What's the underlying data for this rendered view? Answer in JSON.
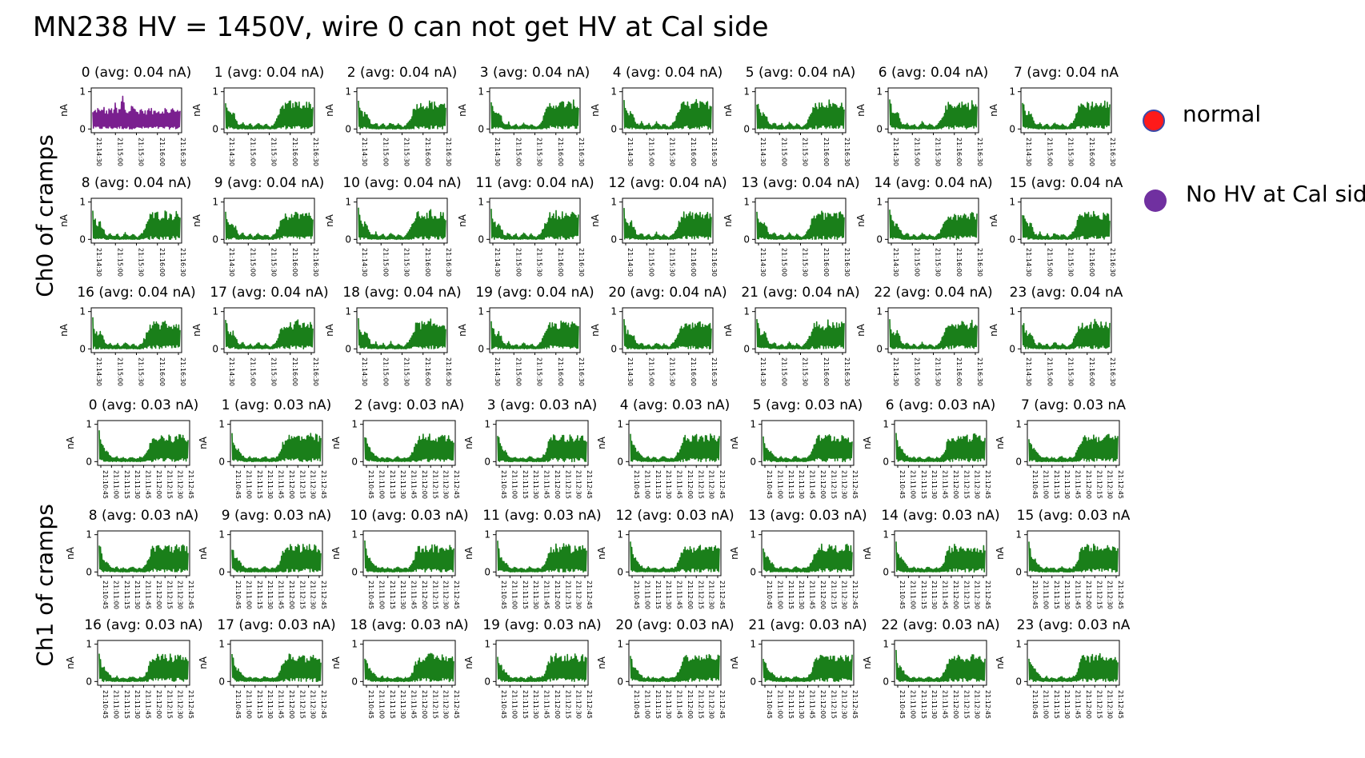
{
  "slide": {
    "title": "MN238 HV = 1450V, wire 0 can not get HV at Cal side"
  },
  "groups": [
    {
      "label": "Ch0 of cramps"
    },
    {
      "label": "Ch1 of cramps"
    }
  ],
  "legend": [
    {
      "label": "normal",
      "color": "#ff1a1a",
      "border": "#3a4aa8"
    },
    {
      "label": "No HV at Cal side",
      "color": "#7030a0",
      "border": "#7030a0"
    }
  ],
  "colors": {
    "normal_series": "#1a7f1a",
    "no_hv_series": "#7a1f8f"
  },
  "chart_data": [
    {
      "type": "line",
      "group": "Ch0 of cramps",
      "panel_titles": [
        "0 (avg: 0.04 nA)",
        "1 (avg: 0.04 nA)",
        "2 (avg: 0.04 nA)",
        "3 (avg: 0.04 nA)",
        "4 (avg: 0.04 nA)",
        "5 (avg: 0.04 nA)",
        "6 (avg: 0.04 nA)",
        "7 (avg: 0.04 nA",
        "8 (avg: 0.04 nA)",
        "9 (avg: 0.04 nA)",
        "10 (avg: 0.04 nA)",
        "11 (avg: 0.04 nA)",
        "12 (avg: 0.04 nA)",
        "13 (avg: 0.04 nA)",
        "14 (avg: 0.04 nA)",
        "15 (avg: 0.04 nA",
        "16 (avg: 0.04 nA)",
        "17 (avg: 0.04 nA)",
        "18 (avg: 0.04 nA)",
        "19 (avg: 0.04 nA)",
        "20 (avg: 0.04 nA)",
        "21 (avg: 0.04 nA)",
        "22 (avg: 0.04 nA)",
        "23 (avg: 0.04 nA"
      ],
      "wire_status": [
        "no_hv",
        "normal",
        "normal",
        "normal",
        "normal",
        "normal",
        "normal",
        "normal",
        "normal",
        "normal",
        "normal",
        "normal",
        "normal",
        "normal",
        "normal",
        "normal",
        "normal",
        "normal",
        "normal",
        "normal",
        "normal",
        "normal",
        "normal",
        "normal"
      ],
      "ylabel": "nA",
      "yticks": [
        "0",
        "1"
      ],
      "ylim": [
        -0.1,
        1.1
      ],
      "xticks": [
        "21:14:30",
        "21:15:00",
        "21:15:30",
        "21:16:00",
        "21:16:30"
      ],
      "profile_normal": [
        0.85,
        0.55,
        0.45,
        0.5,
        0.35,
        0.15,
        0.12,
        0.2,
        0.08,
        0.1,
        0.15,
        0.05,
        0.1,
        0.2,
        0.12,
        0.08,
        0.15,
        0.1,
        0.05,
        0.12,
        0.2,
        0.35,
        0.55,
        0.7,
        0.75,
        0.72,
        0.78,
        0.7,
        0.75,
        0.8,
        0.72,
        0.76,
        0.7,
        0.78,
        0.74,
        0.7
      ],
      "profile_no_hv": [
        0.5,
        0.55,
        0.6,
        0.5,
        0.65,
        0.55,
        0.5,
        0.6,
        0.55,
        0.7,
        0.5,
        0.6,
        1.0,
        0.55,
        0.5,
        0.6,
        0.75,
        0.55,
        0.5,
        0.6,
        0.55,
        0.5,
        0.55,
        0.6,
        0.5,
        0.55,
        0.6,
        0.5,
        0.55,
        0.6,
        0.5,
        0.55,
        0.6,
        0.5,
        0.55,
        0.6
      ]
    },
    {
      "type": "line",
      "group": "Ch1 of cramps",
      "panel_titles": [
        "0 (avg: 0.03 nA)",
        "1 (avg: 0.03 nA)",
        "2 (avg: 0.03 nA)",
        "3 (avg: 0.03 nA)",
        "4 (avg: 0.03 nA)",
        "5 (avg: 0.03 nA)",
        "6 (avg: 0.03 nA)",
        "7 (avg: 0.03 nA",
        "8 (avg: 0.03 nA)",
        "9 (avg: 0.03 nA)",
        "10 (avg: 0.03 nA)",
        "11 (avg: 0.03 nA)",
        "12 (avg: 0.03 nA)",
        "13 (avg: 0.03 nA)",
        "14 (avg: 0.03 nA)",
        "15 (avg: 0.03 nA",
        "16 (avg: 0.03 nA)",
        "17 (avg: 0.03 nA)",
        "18 (avg: 0.03 nA)",
        "19 (avg: 0.03 nA)",
        "20 (avg: 0.03 nA)",
        "21 (avg: 0.03 nA)",
        "22 (avg: 0.03 nA)",
        "23 (avg: 0.03 nA"
      ],
      "wire_status": [
        "normal",
        "normal",
        "normal",
        "normal",
        "normal",
        "normal",
        "normal",
        "normal",
        "normal",
        "normal",
        "normal",
        "normal",
        "normal",
        "normal",
        "normal",
        "normal",
        "normal",
        "normal",
        "normal",
        "normal",
        "normal",
        "normal",
        "normal",
        "normal"
      ],
      "ylabel": "nA",
      "yticks": [
        "0",
        "1"
      ],
      "ylim": [
        -0.1,
        1.1
      ],
      "xticks": [
        "21:10:45",
        "21:11:00",
        "21:11:15",
        "21:11:30",
        "21:11:45",
        "21:12:00",
        "21:12:15",
        "21:12:30",
        "21:12:45"
      ],
      "profile_normal": [
        0.85,
        0.5,
        0.4,
        0.3,
        0.2,
        0.12,
        0.1,
        0.15,
        0.08,
        0.12,
        0.1,
        0.06,
        0.12,
        0.15,
        0.1,
        0.08,
        0.12,
        0.1,
        0.18,
        0.3,
        0.55,
        0.7,
        0.72,
        0.75,
        0.7,
        0.74,
        0.76,
        0.72,
        0.75,
        0.7,
        0.73,
        0.76,
        0.72,
        0.74,
        0.7,
        0.72
      ]
    }
  ]
}
